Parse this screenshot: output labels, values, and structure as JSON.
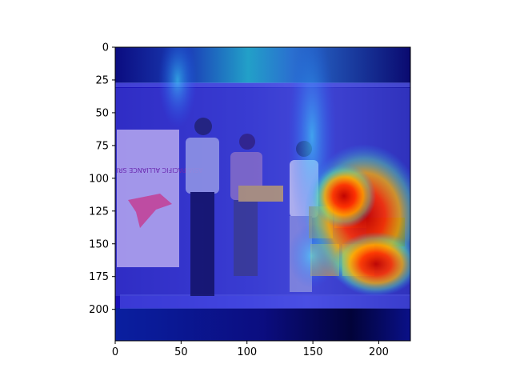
{
  "chart_data": {
    "type": "heatmap",
    "description_of_background": "",
    "x_ticks": [
      0,
      50,
      100,
      150,
      200
    ],
    "y_ticks": [
      0,
      25,
      50,
      75,
      100,
      125,
      150,
      175,
      200
    ],
    "xlim": [
      0,
      224
    ],
    "ylim": [
      224,
      0
    ],
    "y_axis_inverted": true,
    "grid": false,
    "colormap": "jet",
    "image_text": {
      "banner": "ASIA PACIFIC ALLIANCE SRI LANKA"
    },
    "hotspots": [
      {
        "x": 175,
        "y": 110,
        "intensity": 1.0
      },
      {
        "x": 190,
        "y": 140,
        "intensity": 0.95
      },
      {
        "x": 150,
        "y": 130,
        "intensity": 0.55
      },
      {
        "x": 175,
        "y": 175,
        "intensity": 0.7
      }
    ]
  }
}
